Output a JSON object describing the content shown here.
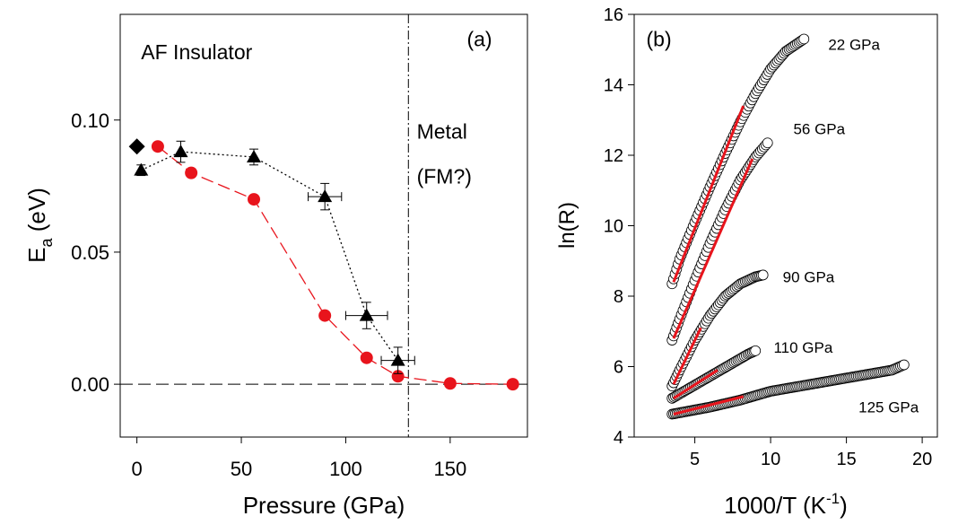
{
  "chart_data": [
    {
      "panel": "(a)",
      "type": "scatter",
      "xlabel": "Pressure (GPa)",
      "ylabel_main": "E",
      "ylabel_sub": "a",
      "ylabel_unit": " (eV)",
      "xlim": [
        -8,
        187
      ],
      "ylim": [
        -0.02,
        0.14
      ],
      "xticks": [
        0,
        50,
        100,
        150
      ],
      "xtick_labels": [
        "0",
        "50",
        "100",
        "150"
      ],
      "yticks": [
        0.0,
        0.05,
        0.1
      ],
      "ytick_labels": [
        "0.00",
        "0.05",
        "0.10"
      ],
      "grid": false,
      "reference_lines": [
        {
          "orientation": "horizontal",
          "y": 0.0,
          "style": "dashed"
        },
        {
          "orientation": "vertical",
          "x": 130,
          "style": "dash-dot"
        }
      ],
      "annotations": [
        {
          "text": "AF Insulator",
          "x": 2,
          "y": 0.123
        },
        {
          "text": "Metal",
          "x": 134,
          "y": 0.093
        },
        {
          "text": "(FM?)",
          "x": 134,
          "y": 0.076
        },
        {
          "text": "(a)",
          "x": 158,
          "y": 0.128
        }
      ],
      "series": [
        {
          "marker": "circle",
          "color": "#e8141c",
          "line": "long-dash",
          "x": [
            10,
            26,
            56,
            90,
            110,
            125,
            150,
            180
          ],
          "y": [
            0.09,
            0.08,
            0.07,
            0.026,
            0.01,
            0.003,
            0.0003,
            0.0
          ],
          "color_hex": "#e8141c"
        },
        {
          "marker": "triangle",
          "color": "#000000",
          "line": "dotted",
          "x": [
            2,
            21,
            56,
            90,
            110,
            125
          ],
          "y": [
            0.081,
            0.088,
            0.086,
            0.071,
            0.026,
            0.009
          ],
          "yerr": [
            0.002,
            0.004,
            0.003,
            0.005,
            0.005,
            0.005
          ],
          "xerr": [
            0,
            0,
            0,
            8,
            10,
            8
          ],
          "color_hex": "#000000"
        },
        {
          "marker": "diamond",
          "color": "#000000",
          "line": "none",
          "x": [
            0
          ],
          "y": [
            0.09
          ]
        }
      ]
    },
    {
      "panel": "(b)",
      "type": "scatter",
      "xlabel_main": "1000/T (K",
      "xlabel_sup": "-1",
      "xlabel_end": ")",
      "ylabel": "ln(R)",
      "xlim": [
        1,
        21
      ],
      "ylim": [
        4,
        16
      ],
      "xticks": [
        5,
        10,
        15,
        20
      ],
      "xtick_labels": [
        "5",
        "10",
        "15",
        "20"
      ],
      "yticks": [
        4,
        6,
        8,
        10,
        12,
        14,
        16
      ],
      "ytick_labels": [
        "4",
        "6",
        "8",
        "10",
        "12",
        "14",
        "16"
      ],
      "grid": false,
      "annotations": [
        {
          "text": "(b)",
          "x": 1.8,
          "y": 15.1
        }
      ],
      "series": [
        {
          "name": "22 GPa",
          "label_x": 13.8,
          "label_y": 15.0,
          "marker": "open-circle",
          "points": [
            [
              3.5,
              8.35
            ],
            [
              4.0,
              9.05
            ],
            [
              5.0,
              10.1
            ],
            [
              6.0,
              11.1
            ],
            [
              7.0,
              12.05
            ],
            [
              8.0,
              12.95
            ],
            [
              9.0,
              13.75
            ],
            [
              10.0,
              14.45
            ],
            [
              11.0,
              14.95
            ],
            [
              12.2,
              15.3
            ]
          ],
          "fit": [
            [
              3.6,
              8.4
            ],
            [
              8.2,
              13.4
            ]
          ]
        },
        {
          "name": "56 GPa",
          "label_x": 11.5,
          "label_y": 12.6,
          "marker": "open-circle",
          "points": [
            [
              3.5,
              6.75
            ],
            [
              4.0,
              7.35
            ],
            [
              5.0,
              8.45
            ],
            [
              6.0,
              9.5
            ],
            [
              7.0,
              10.45
            ],
            [
              8.0,
              11.3
            ],
            [
              9.0,
              11.95
            ],
            [
              9.8,
              12.35
            ]
          ],
          "fit": [
            [
              3.6,
              6.8
            ],
            [
              8.8,
              11.9
            ]
          ]
        },
        {
          "name": "90 GPa",
          "label_x": 10.8,
          "label_y": 8.4,
          "marker": "open-circle",
          "points": [
            [
              3.5,
              5.45
            ],
            [
              4.0,
              5.9
            ],
            [
              5.0,
              6.75
            ],
            [
              6.0,
              7.45
            ],
            [
              7.0,
              8.0
            ],
            [
              8.0,
              8.35
            ],
            [
              9.0,
              8.55
            ],
            [
              9.5,
              8.6
            ]
          ],
          "fit": [
            [
              3.6,
              5.5
            ],
            [
              5.4,
              7.1
            ]
          ]
        },
        {
          "name": "110 GPa",
          "label_x": 10.2,
          "label_y": 6.4,
          "marker": "open-circle",
          "points": [
            [
              3.5,
              5.1
            ],
            [
              4.5,
              5.35
            ],
            [
              5.5,
              5.6
            ],
            [
              6.5,
              5.85
            ],
            [
              7.5,
              6.1
            ],
            [
              8.5,
              6.35
            ],
            [
              9.0,
              6.45
            ]
          ],
          "fit": [
            [
              3.6,
              5.1
            ],
            [
              6.5,
              5.9
            ]
          ]
        },
        {
          "name": "125 GPa",
          "label_x": 15.8,
          "label_y": 4.7,
          "marker": "open-circle",
          "points": [
            [
              3.5,
              4.65
            ],
            [
              6.0,
              4.85
            ],
            [
              8.0,
              5.05
            ],
            [
              10.0,
              5.3
            ],
            [
              12.0,
              5.45
            ],
            [
              14.0,
              5.6
            ],
            [
              16.0,
              5.75
            ],
            [
              18.0,
              5.9
            ],
            [
              18.8,
              6.05
            ]
          ],
          "fit": [
            [
              3.6,
              4.65
            ],
            [
              8.2,
              5.15
            ]
          ]
        }
      ]
    }
  ]
}
